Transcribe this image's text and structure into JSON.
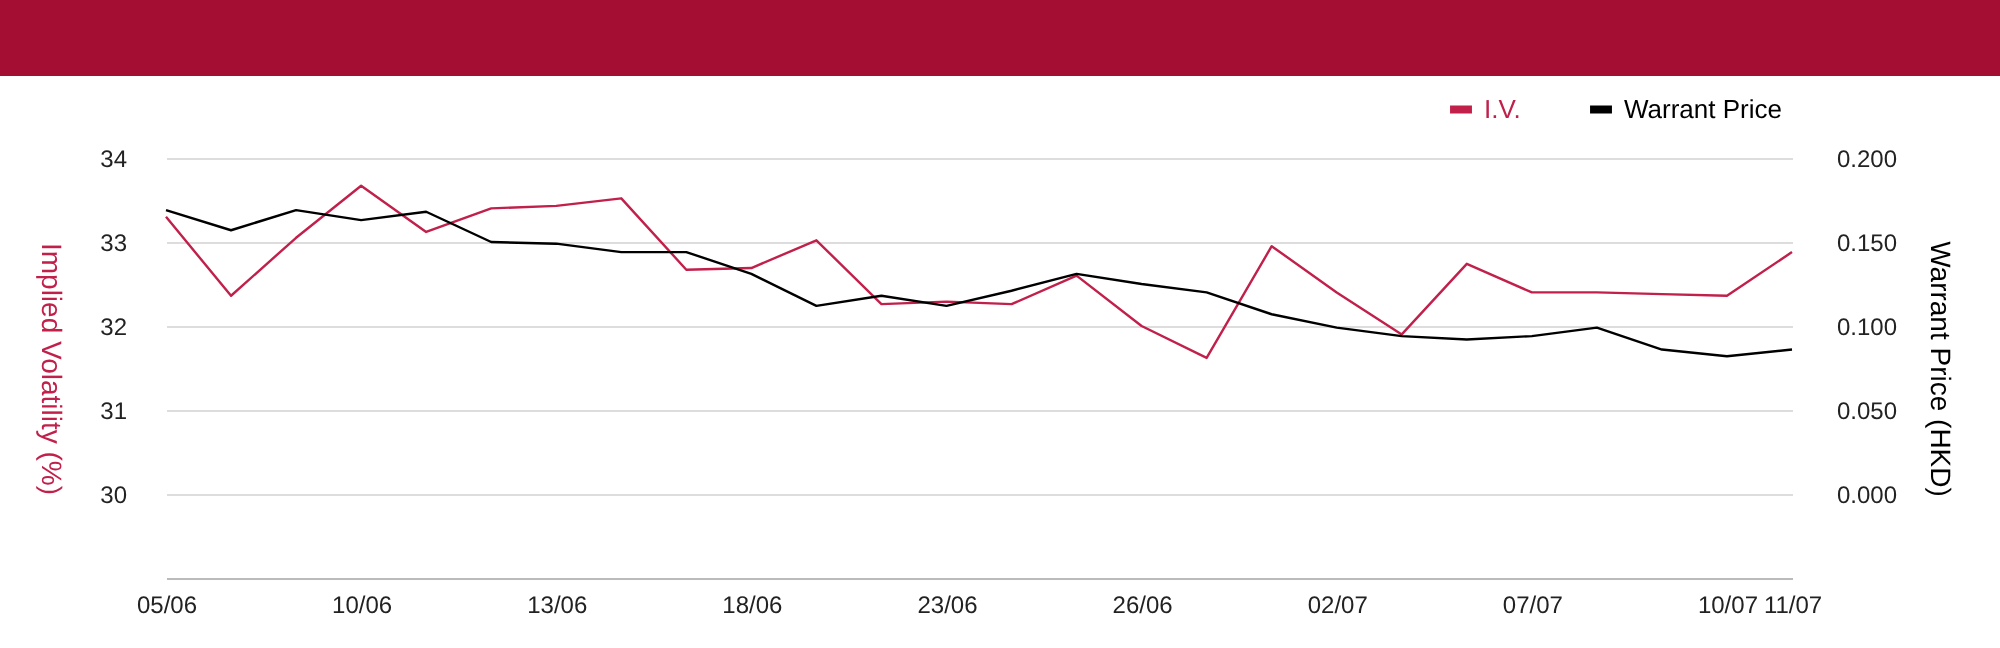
{
  "chart_data": {
    "type": "line",
    "ylabel": "Implied Volatility (%)",
    "y2label": "Warrant Price (HKD)",
    "categories": [
      "05/06",
      null,
      null,
      "10/06",
      null,
      null,
      "13/06",
      null,
      null,
      "18/06",
      null,
      null,
      "23/06",
      null,
      null,
      "26/06",
      null,
      null,
      "02/07",
      null,
      null,
      "07/07",
      null,
      null,
      "10/07",
      "11/07"
    ],
    "series": [
      {
        "name": "I.V.",
        "color": "#c0204a",
        "values": [
          33.3,
          32.36,
          33.05,
          33.67,
          33.12,
          33.4,
          33.43,
          33.52,
          32.67,
          32.69,
          33.02,
          32.26,
          32.29,
          32.26,
          32.6,
          32.0,
          31.62,
          32.95,
          32.4,
          31.9,
          32.74,
          32.4,
          32.4,
          32.38,
          32.36,
          32.88
        ]
      },
      {
        "name": "Warrant Price",
        "color": "#000000",
        "axis": "y2",
        "values": [
          0.169,
          0.157,
          0.169,
          0.163,
          0.168,
          0.15,
          0.149,
          0.144,
          0.144,
          0.131,
          0.112,
          0.118,
          0.112,
          0.121,
          0.131,
          0.125,
          0.12,
          0.107,
          0.099,
          0.094,
          0.092,
          0.094,
          0.099,
          0.086,
          0.082,
          0.086
        ]
      }
    ],
    "ylim": [
      29,
      34
    ],
    "yticks": [
      30,
      31,
      32,
      33,
      34
    ],
    "y2lim": [
      -0.05,
      0.2
    ],
    "y2ticks": [
      {
        "value": 0,
        "label": "0.000"
      },
      {
        "value": 0.05,
        "label": "0.050"
      },
      {
        "value": 0.1,
        "label": "0.100"
      },
      {
        "value": 0.15,
        "label": "0.150"
      },
      {
        "value": 0.2,
        "label": "0.200"
      }
    ],
    "grid": "y",
    "legend": "top right",
    "marker": "none",
    "line_style": "solid"
  }
}
